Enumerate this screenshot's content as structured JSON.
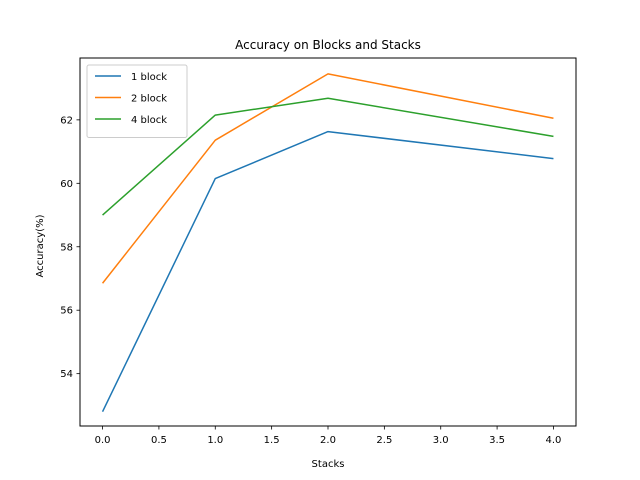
{
  "chart_data": {
    "type": "line",
    "title": "Accuracy on Blocks and Stacks",
    "xlabel": "Stacks",
    "ylabel": "Accuracy(%)",
    "x": [
      0,
      1,
      2,
      4
    ],
    "xlim": [
      -0.2,
      4.2
    ],
    "ylim": [
      52.35,
      63.95
    ],
    "xticks": [
      0.0,
      0.5,
      1.0,
      1.5,
      2.0,
      2.5,
      3.0,
      3.5,
      4.0
    ],
    "xtick_labels": [
      "0.0",
      "0.5",
      "1.0",
      "1.5",
      "2.0",
      "2.5",
      "3.0",
      "3.5",
      "4.0"
    ],
    "yticks": [
      54,
      56,
      58,
      60,
      62
    ],
    "ytick_labels": [
      "54",
      "56",
      "58",
      "60",
      "62"
    ],
    "grid": false,
    "legend_position": "top-left",
    "series": [
      {
        "name": "1 block",
        "color": "#1f77b4",
        "values": [
          52.8,
          60.15,
          61.63,
          60.78
        ]
      },
      {
        "name": "2 block",
        "color": "#ff7f0e",
        "values": [
          56.85,
          61.36,
          63.45,
          62.05
        ]
      },
      {
        "name": "4 block",
        "color": "#2ca02c",
        "values": [
          59.0,
          62.15,
          62.68,
          61.48
        ]
      }
    ]
  }
}
